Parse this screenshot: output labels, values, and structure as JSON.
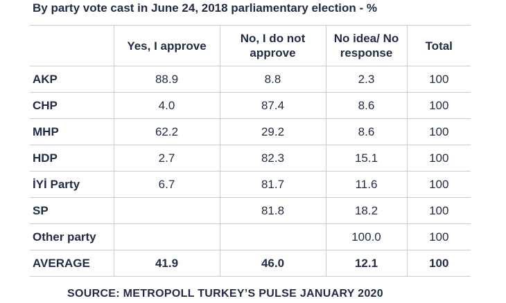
{
  "title": "By party vote cast in June 24, 2018 parliamentary election - %",
  "source": "SOURCE: METROPOLL TURKEY’S PULSE JANUARY 2020",
  "chart_data": {
    "type": "table",
    "title": "By party vote cast in June 24, 2018 parliamentary election - %",
    "columns": [
      "",
      "Yes, I approve",
      "No, I do not approve",
      "No idea/ No response",
      "Total"
    ],
    "rows": [
      {
        "label": "AKP",
        "values": [
          "88.9",
          "8.8",
          "2.3",
          "100"
        ]
      },
      {
        "label": "CHP",
        "values": [
          "4.0",
          "87.4",
          "8.6",
          "100"
        ]
      },
      {
        "label": "MHP",
        "values": [
          "62.2",
          "29.2",
          "8.6",
          "100"
        ]
      },
      {
        "label": "HDP",
        "values": [
          "2.7",
          "82.3",
          "15.1",
          "100"
        ]
      },
      {
        "label": "İYİ Party",
        "values": [
          "6.7",
          "81.7",
          "11.6",
          "100"
        ]
      },
      {
        "label": "SP",
        "values": [
          "",
          "81.8",
          "18.2",
          "100"
        ]
      },
      {
        "label": "Other party",
        "values": [
          "",
          "",
          "100.0",
          "100"
        ]
      },
      {
        "label": "AVERAGE",
        "values": [
          "41.9",
          "46.0",
          "12.1",
          "100"
        ]
      }
    ]
  }
}
